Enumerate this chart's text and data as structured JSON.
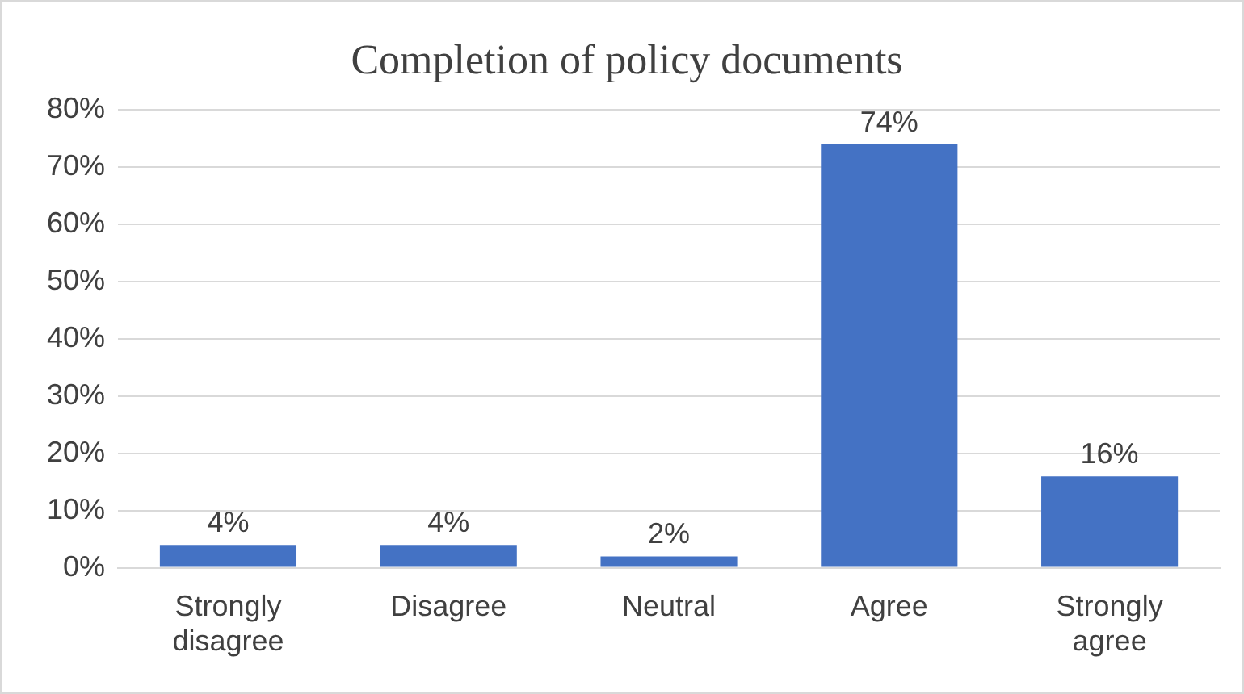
{
  "chart_data": {
    "type": "bar",
    "title": "Completion of policy documents",
    "categories": [
      "Strongly disagree",
      "Disagree",
      "Neutral",
      "Agree",
      "Strongly agree"
    ],
    "values": [
      4,
      4,
      2,
      74,
      16
    ],
    "color": "#4472c4",
    "value_labels": [
      "4%",
      "4%",
      "2%",
      "74%",
      "16%"
    ],
    "ylim": [
      0,
      80
    ],
    "yticks": [
      {
        "value": 0,
        "label": "0%"
      },
      {
        "value": 10,
        "label": "10%"
      },
      {
        "value": 20,
        "label": "20%"
      },
      {
        "value": 30,
        "label": "30%"
      },
      {
        "value": 40,
        "label": "40%"
      },
      {
        "value": 50,
        "label": "50%"
      },
      {
        "value": 60,
        "label": "60%"
      },
      {
        "value": 70,
        "label": "70%"
      },
      {
        "value": 80,
        "label": "80%"
      }
    ],
    "grid": "y",
    "legend": false
  }
}
